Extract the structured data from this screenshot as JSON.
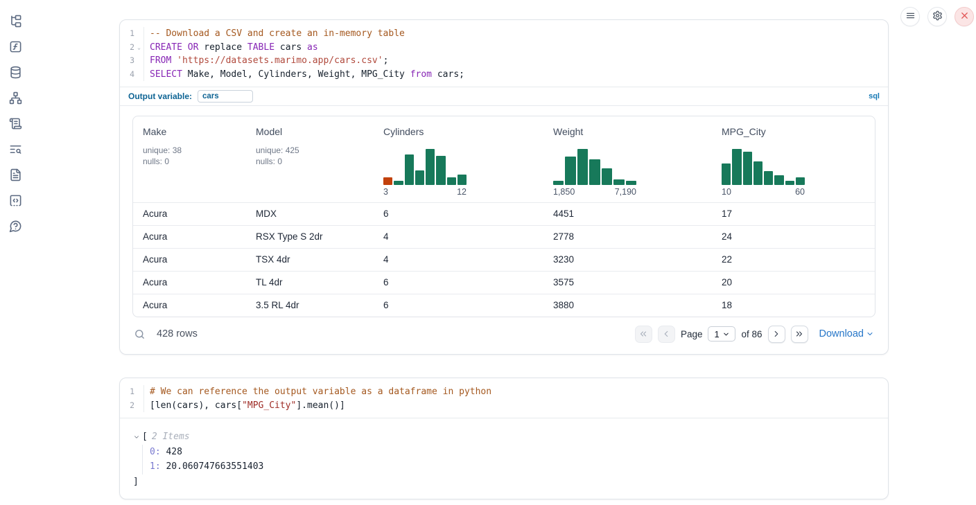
{
  "sidebar": {
    "icons": [
      "file-tree",
      "function-square",
      "database",
      "network",
      "scroll-text",
      "text-search",
      "file-text",
      "snippets-code",
      "help-circle"
    ]
  },
  "topbar": {
    "buttons": [
      {
        "icon": "menu",
        "style": "normal"
      },
      {
        "icon": "settings",
        "style": "normal"
      },
      {
        "icon": "close",
        "style": "danger"
      }
    ]
  },
  "colors": {
    "hist_green": "#17795a",
    "hist_orange": "#c2410c",
    "accent_blue": "#0e6494",
    "link_blue": "#2676c8"
  },
  "sql_cell": {
    "lines": [
      {
        "n": "1",
        "tokens": [
          {
            "c": "comment",
            "t": "-- Download a CSV and create an in-memory table"
          }
        ]
      },
      {
        "n": "2",
        "fold": true,
        "tokens": [
          {
            "c": "kw",
            "t": "CREATE"
          },
          {
            "c": "plain",
            "t": " "
          },
          {
            "c": "kw",
            "t": "OR"
          },
          {
            "c": "plain",
            "t": " replace "
          },
          {
            "c": "kw",
            "t": "TABLE"
          },
          {
            "c": "plain",
            "t": " cars "
          },
          {
            "c": "kw",
            "t": "as"
          }
        ]
      },
      {
        "n": "3",
        "tokens": [
          {
            "c": "kw",
            "t": "FROM"
          },
          {
            "c": "plain",
            "t": " "
          },
          {
            "c": "str",
            "t": "'https://datasets.marimo.app/cars.csv'"
          },
          {
            "c": "plain",
            "t": ";"
          }
        ]
      },
      {
        "n": "4",
        "tokens": [
          {
            "c": "kw",
            "t": "SELECT"
          },
          {
            "c": "plain",
            "t": " Make, Model, Cylinders, Weight, MPG_City "
          },
          {
            "c": "kw",
            "t": "from"
          },
          {
            "c": "plain",
            "t": " cars;"
          }
        ]
      }
    ],
    "output_variable_label": "Output variable:",
    "output_variable_value": "cars",
    "language_badge": "sql"
  },
  "table": {
    "columns": [
      {
        "name": "Make",
        "stats": [
          "unique: 38",
          "nulls: 0"
        ]
      },
      {
        "name": "Model",
        "stats": [
          "unique: 425",
          "nulls: 0"
        ]
      },
      {
        "name": "Cylinders",
        "hist": {
          "bars": [
            {
              "v": 0.22,
              "highlight": true
            },
            {
              "v": 0.12
            },
            {
              "v": 0.85
            },
            {
              "v": 0.4
            },
            {
              "v": 1.0
            },
            {
              "v": 0.8
            },
            {
              "v": 0.22
            },
            {
              "v": 0.28
            }
          ],
          "labels": [
            "3",
            "12"
          ]
        }
      },
      {
        "name": "Weight",
        "hist": {
          "bars": [
            {
              "v": 0.12
            },
            {
              "v": 0.78
            },
            {
              "v": 1.0
            },
            {
              "v": 0.72
            },
            {
              "v": 0.47
            },
            {
              "v": 0.16
            },
            {
              "v": 0.12
            }
          ],
          "labels": [
            "1,850",
            "7,190"
          ]
        }
      },
      {
        "name": "MPG_City",
        "hist": {
          "bars": [
            {
              "v": 0.6
            },
            {
              "v": 1.0
            },
            {
              "v": 0.92
            },
            {
              "v": 0.66
            },
            {
              "v": 0.38
            },
            {
              "v": 0.27
            },
            {
              "v": 0.12
            },
            {
              "v": 0.21
            }
          ],
          "labels": [
            "10",
            "60"
          ]
        }
      }
    ],
    "rows": [
      [
        "Acura",
        "MDX",
        "6",
        "4451",
        "17"
      ],
      [
        "Acura",
        "RSX Type S 2dr",
        "4",
        "2778",
        "24"
      ],
      [
        "Acura",
        "TSX 4dr",
        "4",
        "3230",
        "22"
      ],
      [
        "Acura",
        "TL 4dr",
        "6",
        "3575",
        "20"
      ],
      [
        "Acura",
        "3.5 RL 4dr",
        "6",
        "3880",
        "18"
      ]
    ],
    "footer": {
      "rows_label": "428 rows",
      "page_label": "Page",
      "page_value": "1",
      "of_label": "of 86",
      "download_label": "Download"
    }
  },
  "py_cell": {
    "lines": [
      {
        "n": "1",
        "tokens": [
          {
            "c": "comment",
            "t": "# We can reference the output variable as a dataframe in python"
          }
        ]
      },
      {
        "n": "2",
        "tokens": [
          {
            "c": "plain",
            "t": "[len(cars), cars["
          },
          {
            "c": "str2",
            "t": "\"MPG_City\""
          },
          {
            "c": "plain",
            "t": "].mean()]"
          }
        ]
      }
    ],
    "output": {
      "open_bracket": "[",
      "items_count": "2 Items",
      "items": [
        {
          "key": "0",
          "value": "428"
        },
        {
          "key": "1",
          "value": "20.060747663551403"
        }
      ],
      "close_bracket": "]"
    }
  }
}
